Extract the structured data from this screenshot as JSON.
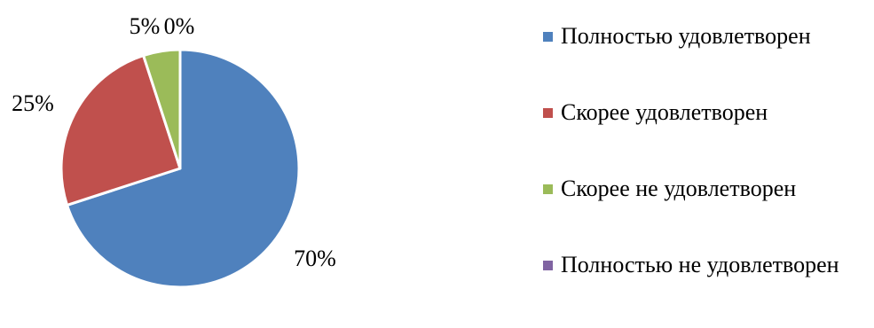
{
  "chart_data": {
    "type": "pie",
    "categories": [
      "Полностью удовлетворен",
      "Скорее удовлетворен",
      "Скорее не удовлетворен",
      "Полностью не удовлетворен"
    ],
    "values": [
      70,
      25,
      5,
      0
    ],
    "labels": [
      "70%",
      "25%",
      "5%",
      "0%"
    ],
    "colors": [
      "#4F81BD",
      "#C0504D",
      "#9BBB59",
      "#8064A2"
    ],
    "title": "",
    "legend_position": "right",
    "start_angle": "12 o'clock",
    "direction": "clockwise"
  }
}
